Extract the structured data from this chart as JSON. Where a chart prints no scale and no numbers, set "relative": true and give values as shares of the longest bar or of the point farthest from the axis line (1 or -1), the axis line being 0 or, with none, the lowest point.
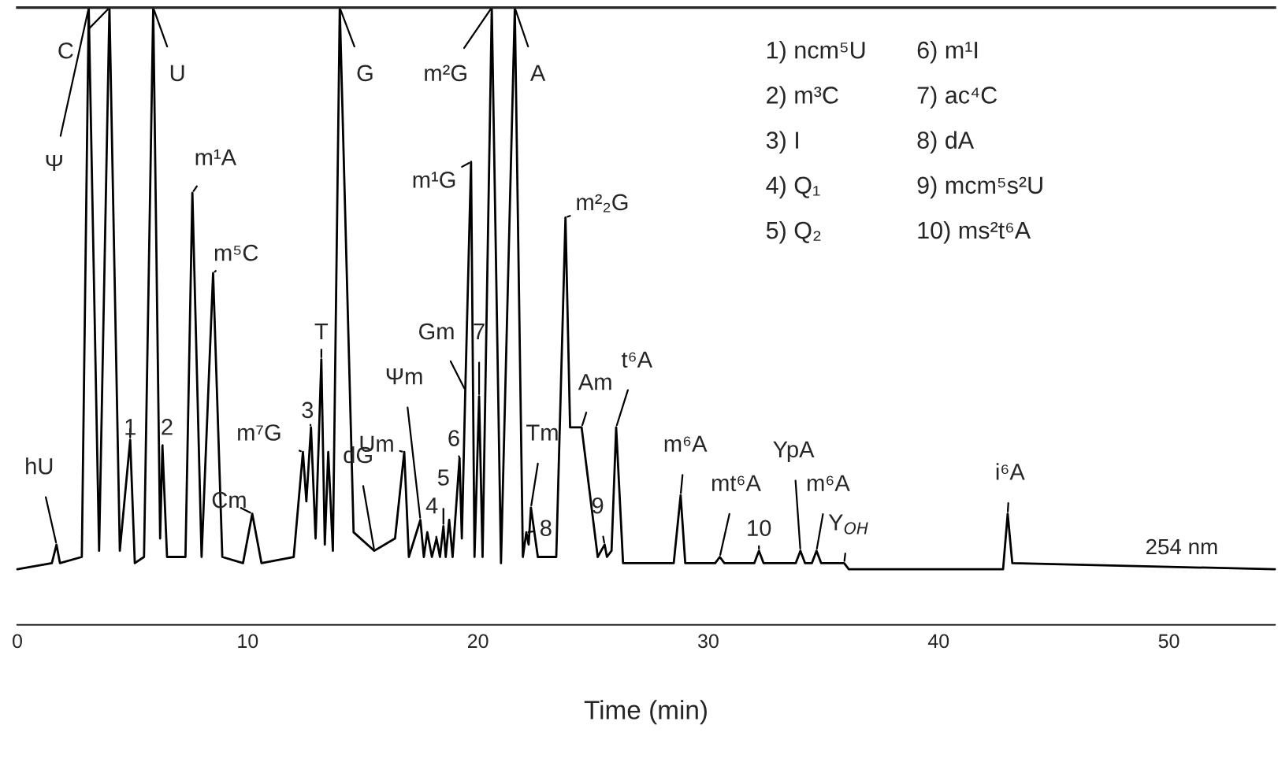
{
  "chart_data": {
    "type": "line",
    "relative": true,
    "tick_labels": "x",
    "xlabel": "Time (min)",
    "xlim": [
      0,
      54.6
    ],
    "xticks": [
      0,
      10,
      20,
      30,
      40,
      50
    ],
    "x": [
      0,
      1.5,
      1.7,
      1.85,
      2.8,
      3.1,
      3.55,
      4.0,
      4.45,
      4.9,
      5.1,
      5.5,
      5.9,
      6.2,
      6.3,
      6.5,
      7.3,
      7.6,
      8.0,
      8.5,
      8.9,
      9.8,
      10.2,
      10.6,
      12.0,
      12.4,
      12.55,
      12.75,
      12.95,
      13.2,
      13.35,
      13.5,
      13.7,
      14.0,
      14.6,
      15.5,
      16.4,
      16.8,
      17.0,
      17.5,
      17.65,
      17.8,
      18.0,
      18.2,
      18.35,
      18.5,
      18.6,
      18.75,
      18.9,
      19.2,
      19.3,
      19.45,
      19.7,
      19.85,
      20.05,
      20.2,
      20.6,
      21.0,
      21.6,
      21.95,
      22.1,
      22.2,
      22.3,
      22.6,
      23.4,
      23.8,
      24.0,
      24.5,
      25.2,
      25.5,
      25.6,
      25.8,
      26.0,
      26.3,
      28.5,
      28.8,
      29.0,
      30.3,
      30.5,
      30.7,
      32.0,
      32.2,
      32.4,
      33.8,
      34.0,
      34.2,
      34.5,
      34.7,
      34.9,
      35.9,
      36.1,
      42.8,
      43.0,
      43.2,
      54.6
    ],
    "series": [
      {
        "color": "#000000",
        "values": [
          0.09,
          0.1,
          0.13,
          0.1,
          0.11,
          1,
          0.12,
          1,
          0.12,
          0.3,
          0.1,
          0.11,
          1,
          0.14,
          0.29,
          0.11,
          0.11,
          0.7,
          0.11,
          0.57,
          0.11,
          0.1,
          0.18,
          0.1,
          0.11,
          0.28,
          0.2,
          0.32,
          0.14,
          0.43,
          0.13,
          0.28,
          0.12,
          1,
          0.15,
          0.12,
          0.14,
          0.28,
          0.11,
          0.17,
          0.11,
          0.15,
          0.11,
          0.14,
          0.11,
          0.16,
          0.11,
          0.17,
          0.11,
          0.27,
          0.14,
          0.38,
          0.75,
          0.11,
          0.37,
          0.11,
          1,
          0.1,
          1,
          0.11,
          0.15,
          0.13,
          0.19,
          0.11,
          0.11,
          0.66,
          0.32,
          0.32,
          0.11,
          0.13,
          0.11,
          0.12,
          0.32,
          0.1,
          0.1,
          0.21,
          0.1,
          0.1,
          0.11,
          0.1,
          0.1,
          0.12,
          0.1,
          0.1,
          0.12,
          0.1,
          0.1,
          0.12,
          0.1,
          0.1,
          0.09,
          0.09,
          0.18,
          0.1,
          0.09
        ]
      }
    ],
    "annotations": [
      {
        "text": "hU",
        "x": 1.7,
        "y": 0.13
      },
      {
        "text": "Ψ",
        "x": 3.1,
        "y": 1
      },
      {
        "text": "C",
        "x": 4.0,
        "y": 1
      },
      {
        "text": "1",
        "x": 4.9,
        "y": 0.3
      },
      {
        "text": "U",
        "x": 5.9,
        "y": 1
      },
      {
        "text": "2",
        "x": 6.3,
        "y": 0.29
      },
      {
        "text": "m¹A",
        "x": 7.6,
        "y": 0.7
      },
      {
        "text": "m⁵C",
        "x": 8.5,
        "y": 0.57
      },
      {
        "text": "Cm",
        "x": 10.2,
        "y": 0.18
      },
      {
        "text": "m⁷G",
        "x": 12.4,
        "y": 0.28
      },
      {
        "text": "3",
        "x": 12.75,
        "y": 0.32
      },
      {
        "text": "T",
        "x": 13.2,
        "y": 0.43
      },
      {
        "text": "G",
        "x": 14.0,
        "y": 1
      },
      {
        "text": "dG",
        "x": 15.5,
        "y": 0.12
      },
      {
        "text": "Um",
        "x": 16.8,
        "y": 0.28
      },
      {
        "text": "Ψm",
        "x": 17.5,
        "y": 0.17
      },
      {
        "text": "4",
        "x": 18.2,
        "y": 0.14
      },
      {
        "text": "5",
        "x": 18.5,
        "y": 0.16
      },
      {
        "text": "6",
        "x": 19.2,
        "y": 0.27
      },
      {
        "text": "Gm",
        "x": 19.45,
        "y": 0.38
      },
      {
        "text": "m¹G",
        "x": 19.7,
        "y": 0.75
      },
      {
        "text": "7",
        "x": 20.05,
        "y": 0.37
      },
      {
        "text": "m²G",
        "x": 20.6,
        "y": 1
      },
      {
        "text": "A",
        "x": 21.6,
        "y": 1
      },
      {
        "text": "8",
        "x": 22.1,
        "y": 0.15
      },
      {
        "text": "Tm",
        "x": 22.3,
        "y": 0.19
      },
      {
        "text": "m²₂G",
        "x": 23.8,
        "y": 0.66
      },
      {
        "text": "Am",
        "x": 24.5,
        "y": 0.32
      },
      {
        "text": "9",
        "x": 25.5,
        "y": 0.13
      },
      {
        "text": "t⁶A",
        "x": 26.0,
        "y": 0.32
      },
      {
        "text": "m⁶A",
        "x": 28.8,
        "y": 0.21
      },
      {
        "text": "mt⁶A",
        "x": 30.5,
        "y": 0.11
      },
      {
        "text": "10",
        "x": 32.2,
        "y": 0.12
      },
      {
        "text": "YpA",
        "x": 34.0,
        "y": 0.12
      },
      {
        "text": "m⁶A",
        "x": 34.7,
        "y": 0.12
      },
      {
        "text": "Y$_{OH}$",
        "x": 35.9,
        "y": 0.1
      },
      {
        "text": "i⁶A",
        "x": 43.0,
        "y": 0.18
      },
      "1) ncm⁵U",
      "2) m³C",
      "3) I",
      "4) Q₁",
      "5) Q₂",
      "6) m¹I",
      "7) ac⁴C",
      "8) dA",
      "9) mcm⁵s²U",
      "10) ms²t⁶A",
      "254 nm"
    ]
  }
}
